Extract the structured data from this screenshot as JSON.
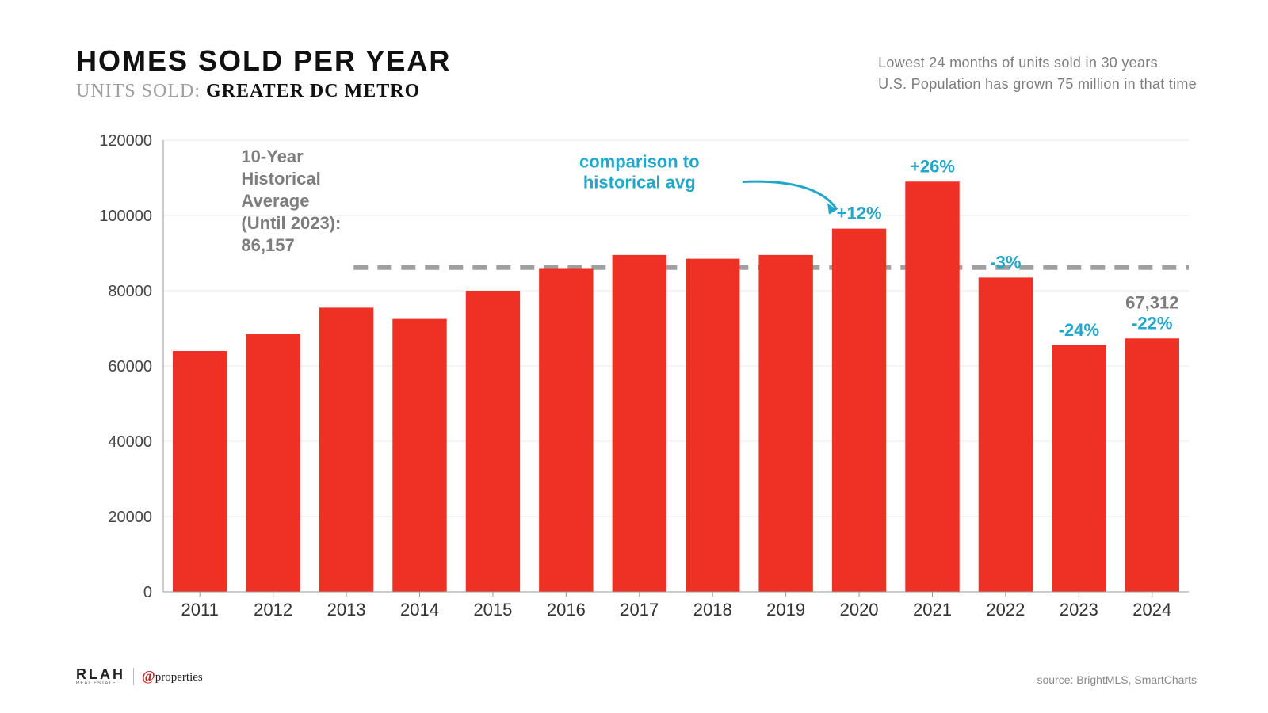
{
  "header": {
    "title": "HOMES SOLD PER YEAR",
    "subtitle_prefix": "UNITS SOLD: ",
    "subtitle_region": "GREATER DC METRO",
    "caption_line1": "Lowest 24 months of units sold in 30 years",
    "caption_line2": "U.S. Population has grown 75 million in that time"
  },
  "chart": {
    "type": "bar",
    "categories": [
      "2011",
      "2012",
      "2013",
      "2014",
      "2015",
      "2016",
      "2017",
      "2018",
      "2019",
      "2020",
      "2021",
      "2022",
      "2023",
      "2024"
    ],
    "values": [
      64000,
      68500,
      75500,
      72500,
      80000,
      86000,
      89500,
      88500,
      89500,
      96500,
      109000,
      83500,
      65500,
      67312
    ],
    "pct_vs_avg": {
      "2020": "+12%",
      "2021": "+26%",
      "2022": "-3%",
      "2023": "-24%",
      "2024": "-22%"
    },
    "value_labels": {
      "2024": "67,312"
    },
    "bar_color": "#ee3124",
    "background_color": "#ffffff",
    "grid_color": "#eaeaea",
    "axis_color": "#999999",
    "pct_label_color": "#21a7c9",
    "val_label_color": "#7d7d7d",
    "ylim": [
      0,
      120000
    ],
    "ytick_step": 20000,
    "bar_width_ratio": 0.74,
    "historical_avg": 86157,
    "avg_line_color": "#9f9f9f",
    "avg_line_dash": "18 12",
    "tick_fontsize": 20,
    "xtick_fontsize": 22,
    "label_fontsize": 22
  },
  "annotations": {
    "avg_note_lines": [
      "10-Year",
      "Historical",
      "Average",
      "(Until 2023):",
      "86,157"
    ],
    "comparison_note_lines": [
      "comparison to",
      "historical avg"
    ]
  },
  "footer": {
    "source": "source: BrightMLS, SmartCharts",
    "logo_main": "RLAH",
    "logo_main_sub": "REAL ESTATE",
    "logo_secondary_prefix": "@",
    "logo_secondary_text": "properties"
  }
}
